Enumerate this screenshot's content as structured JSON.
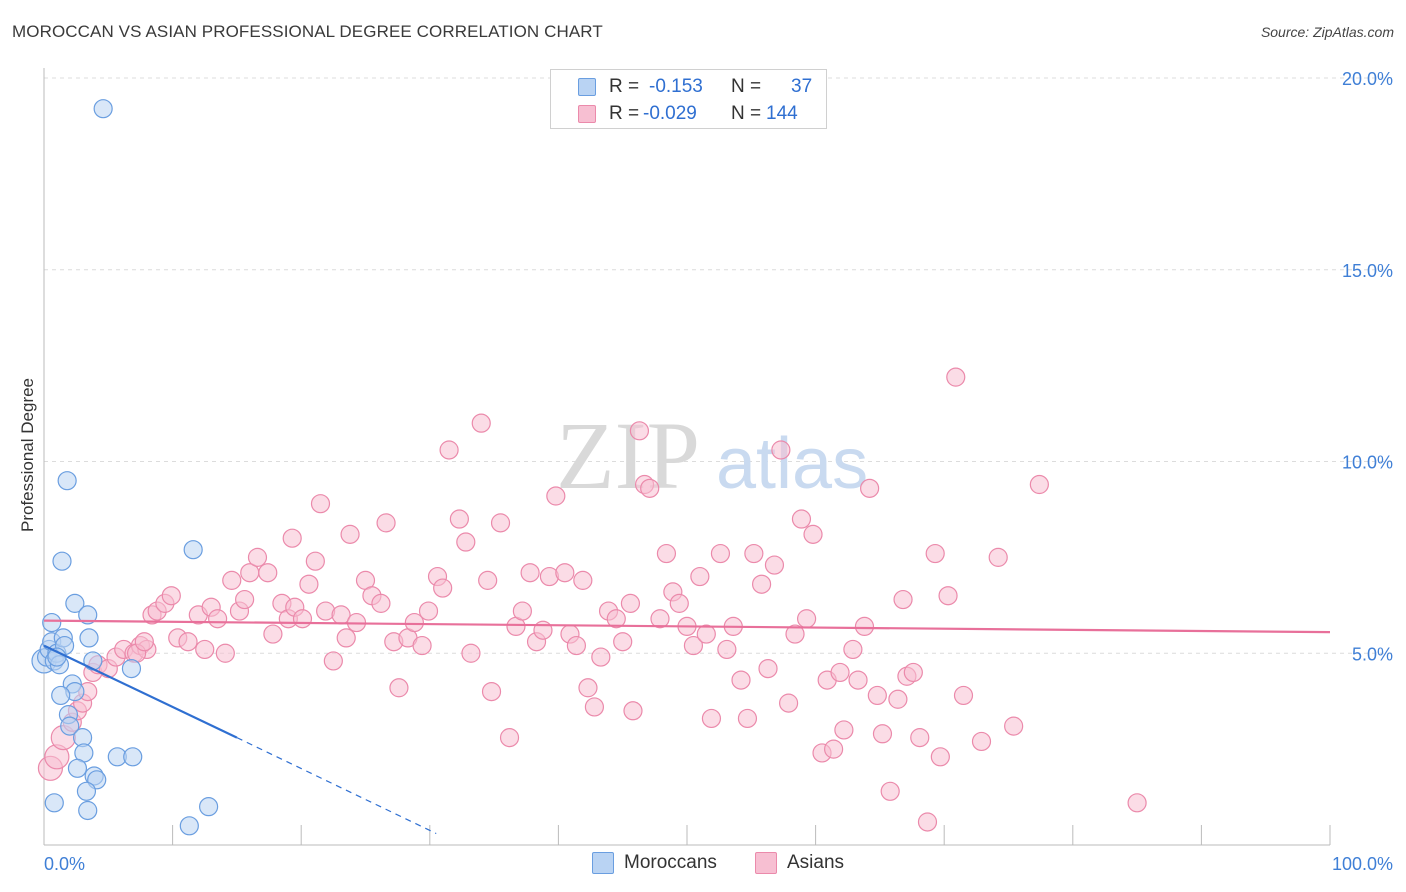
{
  "title": "MOROCCAN VS ASIAN PROFESSIONAL DEGREE CORRELATION CHART",
  "source": "Source: ZipAtlas.com",
  "watermark": {
    "zip": "ZIP",
    "atlas": "atlas"
  },
  "legend": {
    "r_label": "R =",
    "n_label": "N =",
    "rows": [
      {
        "r": "-0.153",
        "n": "37"
      },
      {
        "r": "-0.029",
        "n": "144"
      }
    ]
  },
  "bottom_legend": [
    "Moroccans",
    "Asians"
  ],
  "chart_data": {
    "type": "scatter",
    "title": "MOROCCAN VS ASIAN PROFESSIONAL DEGREE CORRELATION CHART",
    "xlabel": "",
    "ylabel": "Professional Degree",
    "xlim": [
      0,
      100
    ],
    "ylim": [
      0,
      20
    ],
    "x_tick_labels": [
      "0.0%",
      "100.0%"
    ],
    "y_ticks": [
      5,
      10,
      15,
      20
    ],
    "y_tick_labels": [
      "5.0%",
      "10.0%",
      "15.0%",
      "20.0%"
    ],
    "grid": true,
    "legend_position": "top-center",
    "colors": {
      "moroccans_fill": "#b9d3f3",
      "moroccans_stroke": "#6a9ee0",
      "moroccans_line": "#2f6fd1",
      "asians_fill": "#f7bfd2",
      "asians_stroke": "#eb8aab",
      "asians_line": "#e8709a",
      "tick_label": "#3f7fd6"
    },
    "series": [
      {
        "name": "Moroccans",
        "r": -0.153,
        "n": 37,
        "trend": {
          "x0": 0,
          "y0": 5.2,
          "x1": 15,
          "y1": 2.8,
          "dashed_to_x": 30.5,
          "dashed_to_y": 0.3
        },
        "points": [
          [
            0.0,
            4.8
          ],
          [
            0.2,
            4.9
          ],
          [
            0.4,
            5.1
          ],
          [
            0.6,
            5.3
          ],
          [
            0.8,
            4.8
          ],
          [
            1.0,
            5.0
          ],
          [
            0.6,
            5.8
          ],
          [
            1.2,
            4.7
          ],
          [
            1.5,
            5.4
          ],
          [
            1.6,
            5.2
          ],
          [
            1.0,
            4.9
          ],
          [
            1.4,
            7.4
          ],
          [
            1.8,
            9.5
          ],
          [
            2.4,
            6.3
          ],
          [
            3.4,
            6.0
          ],
          [
            3.5,
            5.4
          ],
          [
            3.8,
            4.8
          ],
          [
            6.8,
            4.6
          ],
          [
            2.2,
            4.2
          ],
          [
            2.4,
            4.0
          ],
          [
            1.3,
            3.9
          ],
          [
            1.9,
            3.4
          ],
          [
            2.0,
            3.1
          ],
          [
            3.0,
            2.8
          ],
          [
            3.1,
            2.4
          ],
          [
            2.6,
            2.0
          ],
          [
            3.9,
            1.8
          ],
          [
            4.1,
            1.7
          ],
          [
            3.3,
            1.4
          ],
          [
            3.4,
            0.9
          ],
          [
            5.7,
            2.3
          ],
          [
            6.9,
            2.3
          ],
          [
            11.3,
            0.5
          ],
          [
            12.8,
            1.0
          ],
          [
            11.6,
            7.7
          ],
          [
            4.6,
            19.2
          ],
          [
            0.8,
            1.1
          ]
        ]
      },
      {
        "name": "Asians",
        "r": -0.029,
        "n": 144,
        "trend": {
          "x0": 0,
          "y0": 5.85,
          "x1": 100,
          "y1": 5.55
        },
        "points": [
          [
            0.5,
            2.0
          ],
          [
            1.0,
            2.3
          ],
          [
            1.5,
            2.8
          ],
          [
            2.2,
            3.2
          ],
          [
            2.6,
            3.5
          ],
          [
            3.0,
            3.7
          ],
          [
            3.4,
            4.0
          ],
          [
            3.8,
            4.5
          ],
          [
            4.2,
            4.7
          ],
          [
            5.0,
            4.6
          ],
          [
            5.6,
            4.9
          ],
          [
            6.2,
            5.1
          ],
          [
            7.0,
            5.0
          ],
          [
            7.5,
            5.2
          ],
          [
            8.0,
            5.1
          ],
          [
            7.2,
            5.0
          ],
          [
            7.8,
            5.3
          ],
          [
            8.4,
            6.0
          ],
          [
            8.8,
            6.1
          ],
          [
            9.4,
            6.3
          ],
          [
            9.9,
            6.5
          ],
          [
            10.4,
            5.4
          ],
          [
            11.2,
            5.3
          ],
          [
            12.0,
            6.0
          ],
          [
            12.5,
            5.1
          ],
          [
            13.0,
            6.2
          ],
          [
            13.5,
            5.9
          ],
          [
            14.1,
            5.0
          ],
          [
            14.6,
            6.9
          ],
          [
            15.2,
            6.1
          ],
          [
            15.6,
            6.4
          ],
          [
            16.0,
            7.1
          ],
          [
            16.6,
            7.5
          ],
          [
            17.4,
            7.1
          ],
          [
            17.8,
            5.5
          ],
          [
            18.5,
            6.3
          ],
          [
            19.0,
            5.9
          ],
          [
            19.5,
            6.2
          ],
          [
            19.3,
            8.0
          ],
          [
            20.1,
            5.9
          ],
          [
            20.6,
            6.8
          ],
          [
            21.1,
            7.4
          ],
          [
            21.5,
            8.9
          ],
          [
            21.9,
            6.1
          ],
          [
            22.5,
            4.8
          ],
          [
            23.1,
            6.0
          ],
          [
            23.5,
            5.4
          ],
          [
            23.8,
            8.1
          ],
          [
            24.3,
            5.8
          ],
          [
            25.0,
            6.9
          ],
          [
            25.5,
            6.5
          ],
          [
            26.2,
            6.3
          ],
          [
            26.6,
            8.4
          ],
          [
            27.2,
            5.3
          ],
          [
            27.6,
            4.1
          ],
          [
            28.3,
            5.4
          ],
          [
            28.8,
            5.8
          ],
          [
            29.4,
            5.2
          ],
          [
            29.9,
            6.1
          ],
          [
            30.6,
            7.0
          ],
          [
            31.0,
            6.7
          ],
          [
            31.5,
            10.3
          ],
          [
            32.3,
            8.5
          ],
          [
            32.8,
            7.9
          ],
          [
            33.2,
            5.0
          ],
          [
            34.0,
            11.0
          ],
          [
            34.5,
            6.9
          ],
          [
            34.8,
            4.0
          ],
          [
            35.5,
            8.4
          ],
          [
            36.2,
            2.8
          ],
          [
            36.7,
            5.7
          ],
          [
            37.2,
            6.1
          ],
          [
            37.8,
            7.1
          ],
          [
            38.3,
            5.3
          ],
          [
            38.8,
            5.6
          ],
          [
            39.3,
            7.0
          ],
          [
            39.8,
            9.1
          ],
          [
            40.5,
            7.1
          ],
          [
            40.9,
            5.5
          ],
          [
            41.4,
            5.2
          ],
          [
            41.9,
            6.9
          ],
          [
            42.3,
            4.1
          ],
          [
            42.8,
            3.6
          ],
          [
            43.3,
            4.9
          ],
          [
            43.9,
            6.1
          ],
          [
            44.5,
            5.9
          ],
          [
            45.0,
            5.3
          ],
          [
            45.6,
            6.3
          ],
          [
            45.8,
            3.5
          ],
          [
            46.3,
            10.8
          ],
          [
            46.7,
            9.4
          ],
          [
            47.1,
            9.3
          ],
          [
            47.9,
            5.9
          ],
          [
            48.4,
            7.6
          ],
          [
            48.9,
            6.6
          ],
          [
            49.4,
            6.3
          ],
          [
            50.0,
            5.7
          ],
          [
            50.5,
            5.2
          ],
          [
            51.0,
            7.0
          ],
          [
            51.5,
            5.5
          ],
          [
            51.9,
            3.3
          ],
          [
            52.6,
            7.6
          ],
          [
            53.1,
            5.1
          ],
          [
            53.6,
            5.7
          ],
          [
            54.2,
            4.3
          ],
          [
            54.7,
            3.3
          ],
          [
            55.2,
            7.6
          ],
          [
            55.8,
            6.8
          ],
          [
            56.3,
            4.6
          ],
          [
            56.8,
            7.3
          ],
          [
            57.3,
            10.3
          ],
          [
            57.9,
            3.7
          ],
          [
            58.4,
            5.5
          ],
          [
            58.9,
            8.5
          ],
          [
            59.3,
            5.9
          ],
          [
            59.8,
            8.1
          ],
          [
            60.5,
            2.4
          ],
          [
            60.9,
            4.3
          ],
          [
            61.4,
            2.5
          ],
          [
            61.9,
            4.5
          ],
          [
            62.2,
            3.0
          ],
          [
            62.9,
            5.1
          ],
          [
            63.3,
            4.3
          ],
          [
            63.8,
            5.7
          ],
          [
            64.2,
            9.3
          ],
          [
            64.8,
            3.9
          ],
          [
            65.2,
            2.9
          ],
          [
            65.8,
            1.4
          ],
          [
            66.4,
            3.8
          ],
          [
            66.8,
            6.4
          ],
          [
            67.1,
            4.4
          ],
          [
            67.6,
            4.5
          ],
          [
            68.1,
            2.8
          ],
          [
            68.7,
            0.6
          ],
          [
            69.3,
            7.6
          ],
          [
            69.7,
            2.3
          ],
          [
            70.3,
            6.5
          ],
          [
            70.9,
            12.2
          ],
          [
            71.5,
            3.9
          ],
          [
            72.9,
            2.7
          ],
          [
            74.2,
            7.5
          ],
          [
            75.4,
            3.1
          ],
          [
            77.4,
            9.4
          ],
          [
            85.0,
            1.1
          ]
        ]
      }
    ]
  }
}
